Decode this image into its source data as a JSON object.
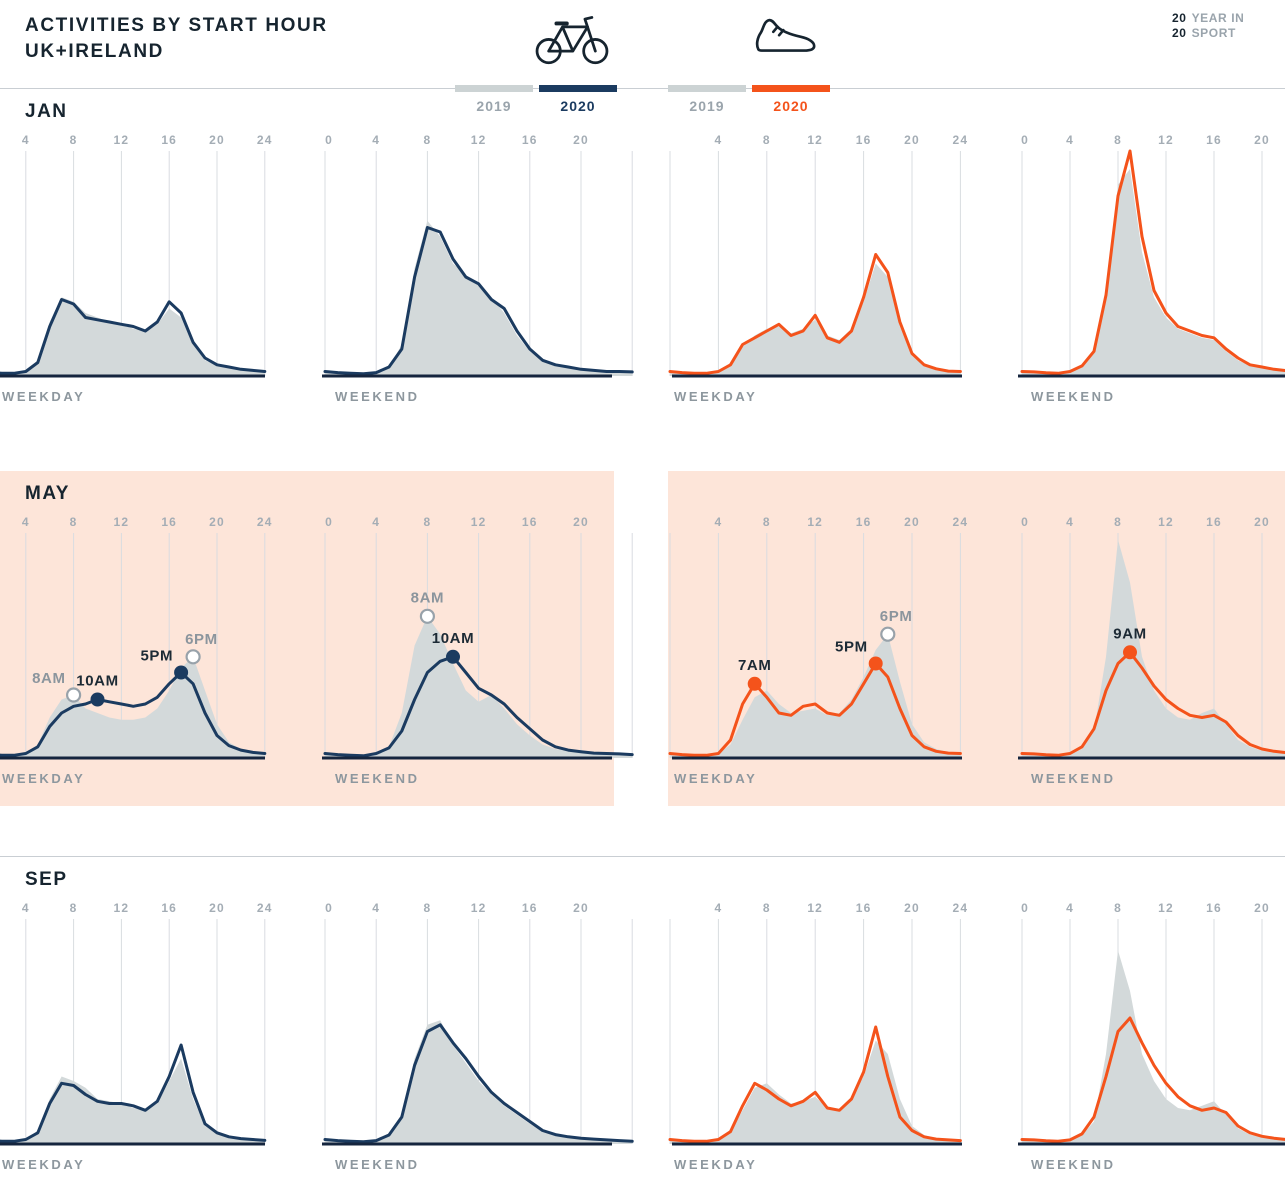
{
  "header": {
    "title_line1": "ACTIVITIES BY START HOUR",
    "title_line2": "UK+IRELAND",
    "badge": {
      "l1num": "20",
      "l1txt": "YEAR IN",
      "l2num": "20",
      "l2txt": "SPORT"
    },
    "icons": {
      "cycling": "bicycle-icon",
      "running": "running-shoe-icon"
    }
  },
  "colors": {
    "cycling_2020": "#1b3b60",
    "running_2020": "#f4531b",
    "prev_year_fill": "#d3d9da",
    "may_band": "#fde5d9",
    "axis": "#15253e",
    "grid": "#d9dce0",
    "tick_text": "#a4adb5",
    "annotation_prev": "#8b959d",
    "annotation_curr": "#1c2a35"
  },
  "legends": {
    "cycling": [
      {
        "label": "2019"
      },
      {
        "label": "2020"
      }
    ],
    "running": [
      {
        "label": "2019"
      },
      {
        "label": "2020"
      }
    ]
  },
  "axis_labels": {
    "weekday": "WEEKDAY",
    "weekend": "WEEKEND"
  },
  "ticks": {
    "weekday": [
      4,
      8,
      12,
      16,
      20,
      24
    ],
    "weekend": [
      0,
      4,
      8,
      12,
      16,
      20
    ]
  },
  "chart_data": {
    "type": "area+line small multiples",
    "x_unit": "start hour of day (0-24)",
    "y_unit": "relative activity volume (0-1)",
    "series_legend": {
      "2019": "grey filled area",
      "2020": "coloured line"
    },
    "rows": [
      {
        "month": "JAN",
        "highlight": false,
        "panels": [
          {
            "sport": "cycling",
            "day": "WEEKDAY",
            "series": {
              "y2019": [
                0.02,
                0.015,
                0.012,
                0.012,
                0.02,
                0.07,
                0.24,
                0.35,
                0.33,
                0.28,
                0.26,
                0.24,
                0.23,
                0.21,
                0.2,
                0.23,
                0.3,
                0.26,
                0.14,
                0.07,
                0.045,
                0.035,
                0.03,
                0.025,
                0.02
              ],
              "y2020": [
                0.02,
                0.015,
                0.012,
                0.012,
                0.02,
                0.06,
                0.22,
                0.34,
                0.32,
                0.26,
                0.25,
                0.24,
                0.23,
                0.22,
                0.2,
                0.24,
                0.33,
                0.28,
                0.15,
                0.08,
                0.05,
                0.04,
                0.03,
                0.025,
                0.02
              ]
            },
            "annotations": []
          },
          {
            "sport": "cycling",
            "day": "WEEKEND",
            "series": {
              "y2019": [
                0.02,
                0.015,
                0.012,
                0.01,
                0.015,
                0.04,
                0.14,
                0.48,
                0.69,
                0.62,
                0.5,
                0.45,
                0.4,
                0.35,
                0.28,
                0.18,
                0.11,
                0.065,
                0.045,
                0.035,
                0.03,
                0.025,
                0.02,
                0.02,
                0.018
              ],
              "y2020": [
                0.02,
                0.015,
                0.012,
                0.01,
                0.015,
                0.04,
                0.12,
                0.44,
                0.66,
                0.64,
                0.52,
                0.44,
                0.41,
                0.34,
                0.3,
                0.2,
                0.12,
                0.07,
                0.05,
                0.04,
                0.03,
                0.025,
                0.02,
                0.02,
                0.018
              ]
            },
            "annotations": []
          },
          {
            "sport": "running",
            "day": "WEEKDAY",
            "series": {
              "y2019": [
                0.02,
                0.015,
                0.012,
                0.012,
                0.02,
                0.05,
                0.13,
                0.18,
                0.21,
                0.22,
                0.19,
                0.21,
                0.25,
                0.18,
                0.16,
                0.21,
                0.33,
                0.5,
                0.44,
                0.22,
                0.09,
                0.045,
                0.03,
                0.022,
                0.02
              ],
              "y2020": [
                0.02,
                0.015,
                0.012,
                0.012,
                0.02,
                0.05,
                0.14,
                0.17,
                0.2,
                0.23,
                0.18,
                0.2,
                0.27,
                0.17,
                0.15,
                0.2,
                0.35,
                0.54,
                0.46,
                0.24,
                0.1,
                0.05,
                0.032,
                0.022,
                0.02
              ]
            },
            "annotations": []
          },
          {
            "sport": "running",
            "day": "WEEKEND",
            "series": {
              "y2019": [
                0.02,
                0.018,
                0.014,
                0.012,
                0.018,
                0.04,
                0.1,
                0.38,
                0.85,
                0.92,
                0.55,
                0.35,
                0.26,
                0.21,
                0.19,
                0.17,
                0.16,
                0.11,
                0.07,
                0.045,
                0.035,
                0.028,
                0.022,
                0.02,
                0.018
              ],
              "y2020": [
                0.02,
                0.018,
                0.014,
                0.012,
                0.02,
                0.045,
                0.11,
                0.36,
                0.8,
                1.0,
                0.62,
                0.38,
                0.28,
                0.22,
                0.2,
                0.18,
                0.17,
                0.12,
                0.08,
                0.05,
                0.04,
                0.03,
                0.024,
                0.02,
                0.018
              ]
            },
            "annotations": []
          }
        ]
      },
      {
        "month": "MAY",
        "highlight": true,
        "panels": [
          {
            "sport": "cycling",
            "day": "WEEKDAY",
            "series": {
              "y2019": [
                0.02,
                0.015,
                0.012,
                0.012,
                0.02,
                0.06,
                0.18,
                0.26,
                0.28,
                0.22,
                0.2,
                0.18,
                0.17,
                0.17,
                0.18,
                0.22,
                0.3,
                0.4,
                0.45,
                0.3,
                0.15,
                0.07,
                0.04,
                0.03,
                0.022
              ],
              "y2020": [
                0.02,
                0.015,
                0.012,
                0.012,
                0.02,
                0.05,
                0.14,
                0.2,
                0.23,
                0.24,
                0.26,
                0.25,
                0.24,
                0.23,
                0.24,
                0.27,
                0.33,
                0.38,
                0.33,
                0.2,
                0.1,
                0.055,
                0.035,
                0.025,
                0.02
              ]
            },
            "annotations": [
              {
                "label": "8AM",
                "hour": 8,
                "value": 0.28,
                "year": 2019,
                "pos": "above-left"
              },
              {
                "label": "10AM",
                "hour": 10,
                "value": 0.26,
                "year": 2020,
                "pos": "above"
              },
              {
                "label": "5PM",
                "hour": 17,
                "value": 0.38,
                "year": 2020,
                "pos": "above-left"
              },
              {
                "label": "6PM",
                "hour": 18,
                "value": 0.45,
                "year": 2019,
                "pos": "above-right"
              }
            ]
          },
          {
            "sport": "cycling",
            "day": "WEEKEND",
            "series": {
              "y2019": [
                0.02,
                0.015,
                0.012,
                0.01,
                0.015,
                0.05,
                0.2,
                0.5,
                0.63,
                0.55,
                0.42,
                0.3,
                0.25,
                0.28,
                0.22,
                0.15,
                0.1,
                0.06,
                0.04,
                0.03,
                0.025,
                0.02,
                0.018,
                0.015,
                0.012
              ],
              "y2020": [
                0.02,
                0.015,
                0.012,
                0.01,
                0.02,
                0.045,
                0.12,
                0.26,
                0.38,
                0.43,
                0.45,
                0.38,
                0.31,
                0.28,
                0.24,
                0.18,
                0.13,
                0.08,
                0.05,
                0.035,
                0.028,
                0.022,
                0.02,
                0.018,
                0.015
              ]
            },
            "annotations": [
              {
                "label": "8AM",
                "hour": 8,
                "value": 0.63,
                "year": 2019,
                "pos": "above"
              },
              {
                "label": "10AM",
                "hour": 10,
                "value": 0.45,
                "year": 2020,
                "pos": "above"
              }
            ]
          },
          {
            "sport": "running",
            "day": "WEEKDAY",
            "series": {
              "y2019": [
                0.02,
                0.015,
                0.012,
                0.012,
                0.02,
                0.06,
                0.17,
                0.27,
                0.3,
                0.24,
                0.2,
                0.21,
                0.22,
                0.19,
                0.2,
                0.26,
                0.36,
                0.48,
                0.55,
                0.34,
                0.15,
                0.07,
                0.04,
                0.026,
                0.02
              ],
              "y2020": [
                0.02,
                0.015,
                0.012,
                0.012,
                0.02,
                0.08,
                0.24,
                0.33,
                0.27,
                0.2,
                0.19,
                0.23,
                0.24,
                0.2,
                0.19,
                0.24,
                0.33,
                0.42,
                0.36,
                0.22,
                0.1,
                0.05,
                0.03,
                0.022,
                0.02
              ]
            },
            "annotations": [
              {
                "label": "7AM",
                "hour": 7,
                "value": 0.33,
                "year": 2020,
                "pos": "above"
              },
              {
                "label": "5PM",
                "hour": 17,
                "value": 0.42,
                "year": 2020,
                "pos": "above-left"
              },
              {
                "label": "6PM",
                "hour": 18,
                "value": 0.55,
                "year": 2019,
                "pos": "above-right"
              }
            ]
          },
          {
            "sport": "running",
            "day": "WEEKEND",
            "series": {
              "y2019": [
                0.02,
                0.018,
                0.014,
                0.012,
                0.015,
                0.04,
                0.12,
                0.45,
                0.97,
                0.78,
                0.45,
                0.3,
                0.22,
                0.18,
                0.17,
                0.2,
                0.22,
                0.15,
                0.08,
                0.05,
                0.032,
                0.024,
                0.02,
                0.016,
                0.012
              ],
              "y2020": [
                0.02,
                0.018,
                0.014,
                0.012,
                0.02,
                0.05,
                0.13,
                0.3,
                0.42,
                0.47,
                0.4,
                0.32,
                0.26,
                0.22,
                0.19,
                0.18,
                0.19,
                0.16,
                0.1,
                0.06,
                0.04,
                0.03,
                0.024,
                0.02,
                0.016
              ]
            },
            "annotations": [
              {
                "label": "9AM",
                "hour": 9,
                "value": 0.47,
                "year": 2020,
                "pos": "above"
              }
            ]
          }
        ]
      },
      {
        "month": "SEP",
        "highlight": false,
        "panels": [
          {
            "sport": "cycling",
            "day": "WEEKDAY",
            "series": {
              "y2019": [
                0.02,
                0.015,
                0.012,
                0.012,
                0.02,
                0.06,
                0.2,
                0.3,
                0.28,
                0.25,
                0.2,
                0.19,
                0.18,
                0.16,
                0.15,
                0.18,
                0.28,
                0.38,
                0.2,
                0.08,
                0.045,
                0.03,
                0.022,
                0.02,
                0.016
              ],
              "y2020": [
                0.02,
                0.015,
                0.012,
                0.012,
                0.02,
                0.05,
                0.18,
                0.27,
                0.26,
                0.22,
                0.19,
                0.18,
                0.18,
                0.17,
                0.15,
                0.19,
                0.3,
                0.44,
                0.23,
                0.09,
                0.05,
                0.032,
                0.024,
                0.02,
                0.016
              ]
            },
            "annotations": []
          },
          {
            "sport": "cycling",
            "day": "WEEKEND",
            "series": {
              "y2019": [
                0.02,
                0.015,
                0.012,
                0.01,
                0.015,
                0.04,
                0.13,
                0.38,
                0.53,
                0.55,
                0.44,
                0.36,
                0.28,
                0.22,
                0.17,
                0.13,
                0.09,
                0.055,
                0.04,
                0.03,
                0.024,
                0.02,
                0.016,
                0.014,
                0.012
              ],
              "y2020": [
                0.02,
                0.015,
                0.012,
                0.01,
                0.015,
                0.04,
                0.12,
                0.35,
                0.5,
                0.53,
                0.45,
                0.38,
                0.3,
                0.23,
                0.18,
                0.14,
                0.1,
                0.06,
                0.042,
                0.032,
                0.026,
                0.022,
                0.018,
                0.015,
                0.012
              ]
            },
            "annotations": []
          },
          {
            "sport": "running",
            "day": "WEEKDAY",
            "series": {
              "y2019": [
                0.02,
                0.015,
                0.012,
                0.012,
                0.02,
                0.05,
                0.15,
                0.25,
                0.27,
                0.22,
                0.18,
                0.19,
                0.21,
                0.16,
                0.15,
                0.2,
                0.3,
                0.46,
                0.4,
                0.2,
                0.08,
                0.04,
                0.026,
                0.02,
                0.016
              ],
              "y2020": [
                0.02,
                0.015,
                0.012,
                0.012,
                0.02,
                0.055,
                0.17,
                0.27,
                0.24,
                0.2,
                0.17,
                0.19,
                0.23,
                0.16,
                0.15,
                0.2,
                0.32,
                0.52,
                0.3,
                0.12,
                0.06,
                0.032,
                0.022,
                0.018,
                0.015
              ]
            },
            "annotations": []
          },
          {
            "sport": "running",
            "day": "WEEKEND",
            "series": {
              "y2019": [
                0.02,
                0.018,
                0.014,
                0.012,
                0.015,
                0.04,
                0.1,
                0.4,
                0.86,
                0.68,
                0.4,
                0.28,
                0.2,
                0.16,
                0.15,
                0.17,
                0.19,
                0.13,
                0.07,
                0.042,
                0.03,
                0.022,
                0.018,
                0.014,
                0.012
              ],
              "y2020": [
                0.02,
                0.018,
                0.014,
                0.012,
                0.018,
                0.045,
                0.12,
                0.3,
                0.5,
                0.56,
                0.45,
                0.35,
                0.27,
                0.21,
                0.17,
                0.15,
                0.16,
                0.14,
                0.08,
                0.05,
                0.034,
                0.026,
                0.02,
                0.016,
                0.013
              ]
            },
            "annotations": []
          }
        ]
      }
    ]
  }
}
